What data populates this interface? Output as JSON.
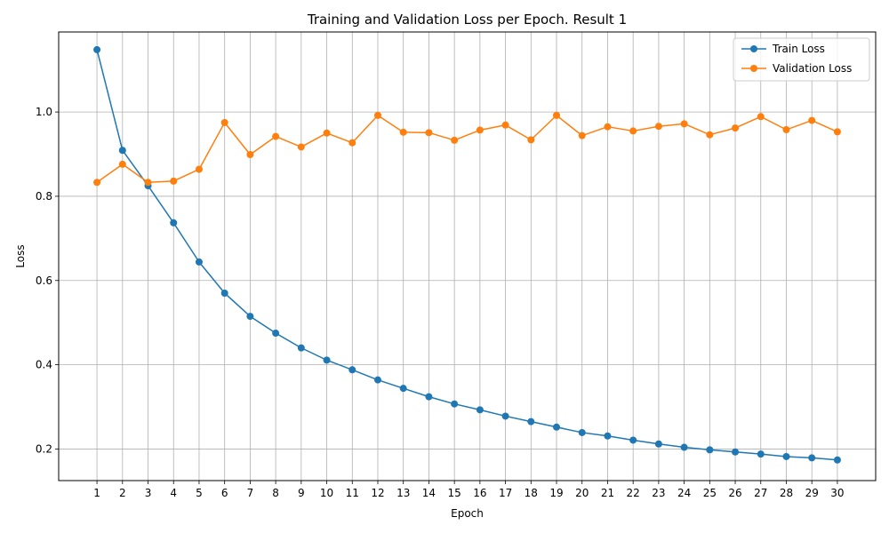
{
  "chart_data": {
    "type": "line",
    "title": "Training and Validation Loss per Epoch. Result 1",
    "xlabel": "Epoch",
    "ylabel": "Loss",
    "x": [
      1,
      2,
      3,
      4,
      5,
      6,
      7,
      8,
      9,
      10,
      11,
      12,
      13,
      14,
      15,
      16,
      17,
      18,
      19,
      20,
      21,
      22,
      23,
      24,
      25,
      26,
      27,
      28,
      29,
      30
    ],
    "xlim": [
      -0.5,
      31.5
    ],
    "ylim": [
      0.125,
      1.19
    ],
    "y_ticks": [
      0.2,
      0.4,
      0.6,
      0.8,
      1.0
    ],
    "y_tick_labels": [
      "0.2",
      "0.4",
      "0.6",
      "0.8",
      "1.0"
    ],
    "x_tick_labels": [
      "1",
      "2",
      "3",
      "4",
      "5",
      "6",
      "7",
      "8",
      "9",
      "10",
      "11",
      "12",
      "13",
      "14",
      "15",
      "16",
      "17",
      "18",
      "19",
      "20",
      "21",
      "22",
      "23",
      "24",
      "25",
      "26",
      "27",
      "28",
      "29",
      "30"
    ],
    "grid": true,
    "legend_position": "top-right",
    "series": [
      {
        "name": "Train Loss",
        "color": "#1f77b4",
        "marker": "circle",
        "values": [
          1.148,
          0.909,
          0.825,
          0.737,
          0.644,
          0.57,
          0.515,
          0.475,
          0.44,
          0.411,
          0.388,
          0.364,
          0.344,
          0.324,
          0.307,
          0.293,
          0.278,
          0.265,
          0.252,
          0.239,
          0.231,
          0.221,
          0.212,
          0.204,
          0.198,
          0.193,
          0.188,
          0.182,
          0.179,
          0.174
        ]
      },
      {
        "name": "Validation Loss",
        "color": "#ff7f0e",
        "marker": "circle",
        "values": [
          0.833,
          0.876,
          0.833,
          0.836,
          0.864,
          0.975,
          0.899,
          0.942,
          0.917,
          0.95,
          0.927,
          0.992,
          0.952,
          0.951,
          0.933,
          0.957,
          0.969,
          0.934,
          0.992,
          0.944,
          0.965,
          0.955,
          0.966,
          0.972,
          0.946,
          0.962,
          0.989,
          0.958,
          0.98,
          0.953
        ]
      }
    ]
  }
}
